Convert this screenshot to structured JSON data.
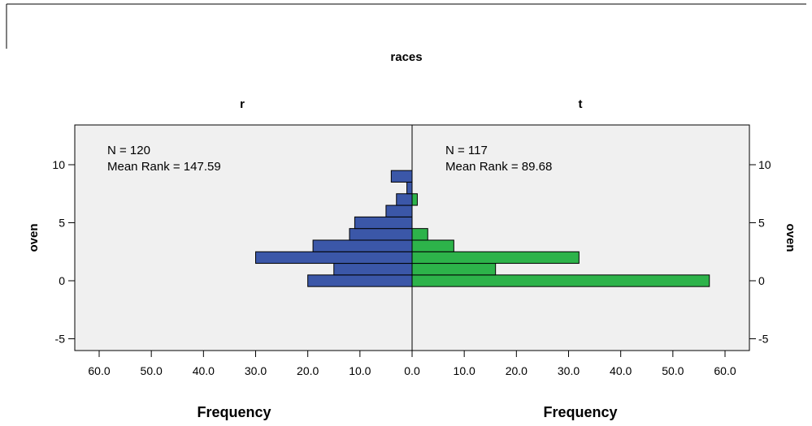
{
  "chart_data": {
    "type": "bar",
    "orientation": "horizontal",
    "layout": "back-to-back population pyramid",
    "title": "races",
    "ylabel": "oven",
    "y_ticks": [
      10,
      5,
      0,
      -5
    ],
    "ylim": [
      -5,
      12
    ],
    "xlim": [
      0,
      60
    ],
    "x_ticks": [
      "60.0",
      "50.0",
      "40.0",
      "30.0",
      "20.0",
      "10.0",
      "0.0",
      "10.0",
      "20.0",
      "30.0",
      "40.0",
      "50.0",
      "60.0"
    ],
    "grid": false,
    "panels": [
      {
        "name": "r",
        "xlabel": "Frequency",
        "n_text": "N = 120",
        "mean_rank_text": "Mean Rank = 147.59",
        "color": "#3b57a8",
        "bins": [
          0,
          1,
          2,
          3,
          4,
          5,
          6,
          7,
          8,
          9
        ],
        "values": [
          20,
          15,
          30,
          19,
          12,
          11,
          5,
          3,
          1,
          4
        ]
      },
      {
        "name": "t",
        "xlabel": "Frequency",
        "n_text": "N = 117",
        "mean_rank_text": "Mean Rank = 89.68",
        "color": "#2db34a",
        "bins": [
          0,
          1,
          2,
          3,
          4,
          5,
          6,
          7,
          8,
          9
        ],
        "values": [
          57,
          16,
          32,
          8,
          3,
          0,
          0,
          1,
          0,
          0
        ]
      }
    ]
  }
}
